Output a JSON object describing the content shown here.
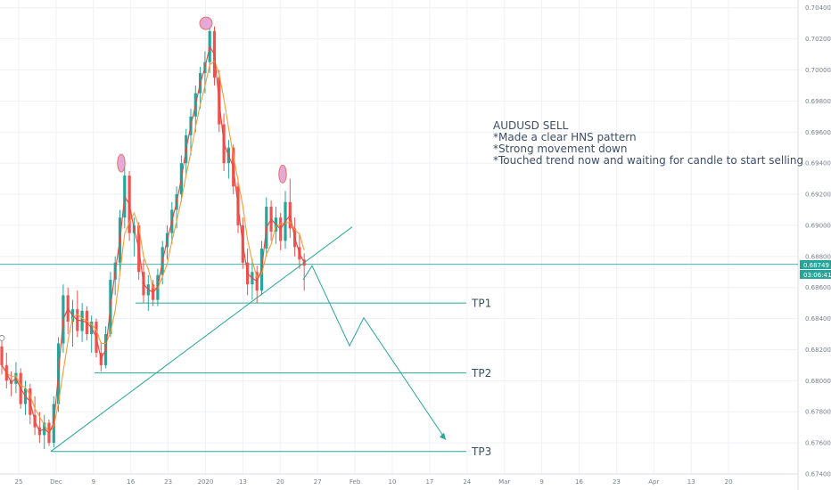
{
  "chart_data": {
    "type": "candlestick",
    "symbol_colors": {
      "up": "#26a69a",
      "down": "#ef5350",
      "ma_red": "#e8453c",
      "ma_orange": "#f59d33",
      "drawing": "#26a69a",
      "grid": "#eef1f5",
      "head_marker": "#e6a9d6"
    },
    "price_axis": {
      "ticks": [
        "0.67400",
        "0.67600",
        "0.67800",
        "0.68000",
        "0.68200",
        "0.68400",
        "0.68600",
        "0.68800",
        "0.69000",
        "0.69200",
        "0.69400",
        "0.69600",
        "0.69800",
        "0.70000",
        "0.70200",
        "0.70400"
      ],
      "ylim": [
        0.674,
        0.7045
      ]
    },
    "time_axis": {
      "ticks": [
        "25",
        "Dec",
        "9",
        "16",
        "23",
        "2020",
        "13",
        "20",
        "27",
        "Feb",
        "10",
        "17",
        "24",
        "Mar",
        "9",
        "16",
        "23",
        "Apr",
        "13",
        "20"
      ]
    },
    "current_price": {
      "price": "0.68749",
      "countdown": "03:06:41"
    },
    "annotation": {
      "lines": [
        "AUDUSD SELL",
        "*Made a clear HNS pattern",
        "*Strong movement down",
        "*Touched trend now and waiting for candle to start selling"
      ]
    },
    "targets": [
      {
        "label": "TP1",
        "price": 0.685
      },
      {
        "label": "TP2",
        "price": 0.6805
      },
      {
        "label": "TP3",
        "price": 0.67545
      }
    ],
    "hns_markers": [
      {
        "name": "left-shoulder",
        "price": 0.694
      },
      {
        "name": "head",
        "price": 0.703
      },
      {
        "name": "right-shoulder",
        "price": 0.6933
      }
    ],
    "candles": [
      [
        0.6822,
        0.6826,
        0.6804,
        0.681
      ],
      [
        0.681,
        0.6818,
        0.6795,
        0.68
      ],
      [
        0.68,
        0.6806,
        0.679,
        0.6798
      ],
      [
        0.6798,
        0.6812,
        0.6792,
        0.6805
      ],
      [
        0.6805,
        0.6808,
        0.6782,
        0.6785
      ],
      [
        0.6785,
        0.68,
        0.6778,
        0.6795
      ],
      [
        0.6795,
        0.6798,
        0.6772,
        0.6778
      ],
      [
        0.6778,
        0.679,
        0.6765,
        0.677
      ],
      [
        0.677,
        0.678,
        0.676,
        0.6765
      ],
      [
        0.6765,
        0.6778,
        0.6756,
        0.6773
      ],
      [
        0.6773,
        0.6775,
        0.6758,
        0.676
      ],
      [
        0.676,
        0.679,
        0.6757,
        0.6785
      ],
      [
        0.6785,
        0.6828,
        0.678,
        0.6824
      ],
      [
        0.6824,
        0.6862,
        0.6818,
        0.6855
      ],
      [
        0.6855,
        0.686,
        0.683,
        0.6838
      ],
      [
        0.6838,
        0.6852,
        0.6822,
        0.6846
      ],
      [
        0.6846,
        0.6858,
        0.6828,
        0.6832
      ],
      [
        0.6832,
        0.685,
        0.6825,
        0.6845
      ],
      [
        0.6845,
        0.6848,
        0.6826,
        0.683
      ],
      [
        0.683,
        0.6842,
        0.6818,
        0.6838
      ],
      [
        0.6838,
        0.684,
        0.6815,
        0.6818
      ],
      [
        0.6818,
        0.6825,
        0.6806,
        0.681
      ],
      [
        0.681,
        0.6835,
        0.6808,
        0.683
      ],
      [
        0.683,
        0.687,
        0.6828,
        0.6865
      ],
      [
        0.6865,
        0.688,
        0.6855,
        0.6876
      ],
      [
        0.6876,
        0.691,
        0.687,
        0.6905
      ],
      [
        0.6905,
        0.694,
        0.6898,
        0.6932
      ],
      [
        0.6932,
        0.6935,
        0.689,
        0.6895
      ],
      [
        0.6895,
        0.6905,
        0.688,
        0.69
      ],
      [
        0.69,
        0.6902,
        0.6865,
        0.687
      ],
      [
        0.687,
        0.6878,
        0.685,
        0.6855
      ],
      [
        0.6855,
        0.6868,
        0.6845,
        0.6862
      ],
      [
        0.6862,
        0.6865,
        0.6848,
        0.6852
      ],
      [
        0.6852,
        0.6872,
        0.6848,
        0.6868
      ],
      [
        0.6868,
        0.689,
        0.6862,
        0.6886
      ],
      [
        0.6886,
        0.69,
        0.6878,
        0.6895
      ],
      [
        0.6895,
        0.6915,
        0.6888,
        0.691
      ],
      [
        0.691,
        0.6925,
        0.6898,
        0.692
      ],
      [
        0.692,
        0.6945,
        0.6915,
        0.694
      ],
      [
        0.694,
        0.6962,
        0.6932,
        0.6958
      ],
      [
        0.6958,
        0.6975,
        0.6945,
        0.697
      ],
      [
        0.697,
        0.699,
        0.696,
        0.6985
      ],
      [
        0.6985,
        0.7002,
        0.6975,
        0.6998
      ],
      [
        0.6998,
        0.7012,
        0.6985,
        0.7005
      ],
      [
        0.7005,
        0.703,
        0.6998,
        0.7025
      ],
      [
        0.7025,
        0.7028,
        0.699,
        0.6995
      ],
      [
        0.6995,
        0.7,
        0.696,
        0.6965
      ],
      [
        0.6965,
        0.6972,
        0.6935,
        0.694
      ],
      [
        0.694,
        0.6955,
        0.693,
        0.695
      ],
      [
        0.695,
        0.6952,
        0.692,
        0.6925
      ],
      [
        0.6925,
        0.693,
        0.6895,
        0.69
      ],
      [
        0.69,
        0.6905,
        0.6872,
        0.6876
      ],
      [
        0.6876,
        0.6885,
        0.6855,
        0.6862
      ],
      [
        0.6862,
        0.6878,
        0.6852,
        0.687
      ],
      [
        0.687,
        0.6874,
        0.685,
        0.6858
      ],
      [
        0.6858,
        0.689,
        0.6855,
        0.6885
      ],
      [
        0.6885,
        0.6918,
        0.688,
        0.6912
      ],
      [
        0.6912,
        0.6916,
        0.689,
        0.6896
      ],
      [
        0.6896,
        0.6912,
        0.6888,
        0.6905
      ],
      [
        0.6905,
        0.6908,
        0.6884,
        0.689
      ],
      [
        0.689,
        0.6922,
        0.6885,
        0.6915
      ],
      [
        0.6915,
        0.693,
        0.6892,
        0.6898
      ],
      [
        0.6898,
        0.6905,
        0.688,
        0.6886
      ],
      [
        0.6886,
        0.6895,
        0.6872,
        0.6878
      ],
      [
        0.6878,
        0.6882,
        0.6858,
        0.6874
      ]
    ],
    "title": "",
    "xlabel": "",
    "ylabel": ""
  }
}
